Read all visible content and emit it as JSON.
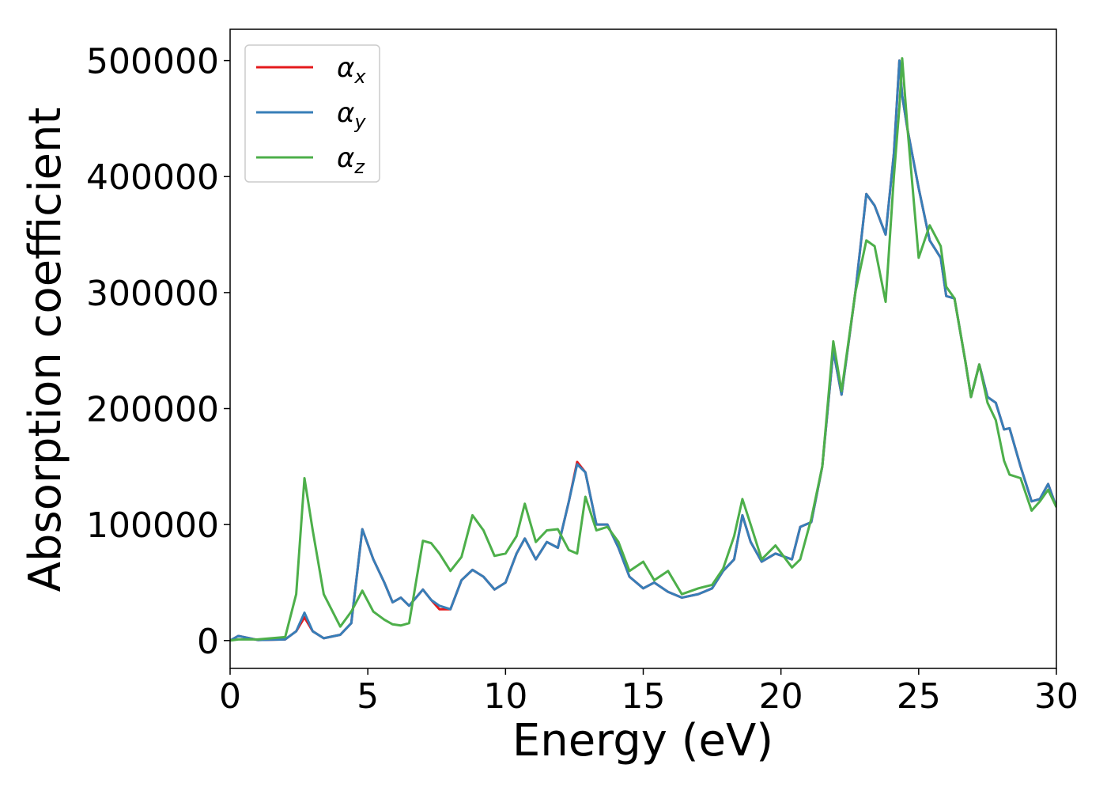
{
  "chart_data": {
    "type": "line",
    "x_label": "Energy (eV)",
    "y_label": "Absorption coefficient",
    "xlim": [
      0,
      30
    ],
    "ylim": [
      -24000,
      527000
    ],
    "xticks": [
      0,
      5,
      10,
      15,
      20,
      25,
      30
    ],
    "yticks": [
      0,
      100000,
      200000,
      300000,
      400000,
      500000
    ],
    "grid": false,
    "legend": "upper left",
    "x": [
      0,
      0.3,
      0.7,
      1,
      2,
      2.4,
      2.7,
      3.0,
      3.4,
      4.0,
      4.4,
      4.8,
      5.2,
      5.6,
      5.9,
      6.2,
      6.5,
      7.0,
      7.3,
      7.6,
      8.0,
      8.4,
      8.8,
      9.2,
      9.6,
      10.0,
      10.4,
      10.7,
      11.1,
      11.5,
      11.9,
      12.3,
      12.6,
      12.9,
      13.3,
      13.7,
      14.1,
      14.5,
      15.0,
      15.4,
      15.9,
      16.4,
      17.0,
      17.5,
      17.9,
      18.3,
      18.6,
      18.9,
      19.3,
      19.8,
      20.4,
      20.7,
      21.1,
      21.5,
      21.9,
      22.2,
      22.7,
      23.1,
      23.4,
      23.8,
      24.1,
      24.3,
      24.4,
      24.6,
      25.0,
      25.4,
      25.8,
      26.0,
      26.3,
      26.7,
      26.9,
      27.2,
      27.5,
      27.8,
      28.1,
      28.3,
      28.7,
      29.1,
      29.4,
      29.7,
      30.0
    ],
    "series": [
      {
        "name": "αx",
        "color": "#e41a1c",
        "values": [
          0,
          4000,
          2000,
          500,
          1000,
          8000,
          20000,
          8000,
          2000,
          5000,
          15000,
          96000,
          70000,
          50000,
          33000,
          37000,
          30000,
          44000,
          35000,
          27000,
          27000,
          52000,
          61000,
          55000,
          44000,
          50000,
          75000,
          88000,
          70000,
          85000,
          80000,
          120000,
          154000,
          145000,
          100000,
          100000,
          80000,
          55000,
          45000,
          50000,
          42000,
          37000,
          40000,
          45000,
          60000,
          70000,
          108000,
          85000,
          68000,
          75000,
          70000,
          98000,
          102000,
          150000,
          250000,
          212000,
          300000,
          385000,
          375000,
          350000,
          420000,
          500000,
          470000,
          440000,
          390000,
          345000,
          330000,
          297000,
          295000,
          240000,
          210000,
          238000,
          210000,
          205000,
          182000,
          183000,
          150000,
          120000,
          122000,
          135000,
          115000
        ]
      },
      {
        "name": "αy",
        "color": "#377eb8",
        "values": [
          0,
          4000,
          2000,
          500,
          1000,
          8000,
          24000,
          8000,
          2000,
          5000,
          15000,
          96000,
          70000,
          50000,
          33000,
          37000,
          30000,
          44000,
          35000,
          30000,
          27000,
          52000,
          61000,
          55000,
          44000,
          50000,
          75000,
          88000,
          70000,
          85000,
          80000,
          120000,
          152000,
          145000,
          100000,
          100000,
          80000,
          55000,
          45000,
          50000,
          42000,
          37000,
          40000,
          45000,
          60000,
          70000,
          108000,
          85000,
          68000,
          75000,
          70000,
          98000,
          102000,
          150000,
          250000,
          212000,
          300000,
          385000,
          375000,
          350000,
          420000,
          500000,
          470000,
          440000,
          390000,
          345000,
          330000,
          297000,
          295000,
          240000,
          210000,
          238000,
          210000,
          205000,
          182000,
          183000,
          150000,
          120000,
          122000,
          135000,
          115000
        ]
      },
      {
        "name": "αz",
        "color": "#4daf4a",
        "values": [
          0,
          1000,
          1000,
          1000,
          3000,
          40000,
          140000,
          95000,
          40000,
          12000,
          25000,
          43000,
          25000,
          18000,
          14000,
          13000,
          15000,
          86000,
          84000,
          75000,
          60000,
          72000,
          108000,
          95000,
          73000,
          75000,
          90000,
          118000,
          85000,
          95000,
          96000,
          78000,
          75000,
          124000,
          95000,
          98000,
          85000,
          60000,
          68000,
          52000,
          60000,
          40000,
          45000,
          48000,
          62000,
          90000,
          122000,
          100000,
          70000,
          82000,
          63000,
          70000,
          105000,
          150000,
          258000,
          215000,
          300000,
          345000,
          340000,
          292000,
          400000,
          460000,
          502000,
          440000,
          330000,
          358000,
          340000,
          305000,
          295000,
          240000,
          210000,
          238000,
          205000,
          190000,
          155000,
          143000,
          140000,
          112000,
          120000,
          130000,
          115000
        ]
      }
    ]
  }
}
